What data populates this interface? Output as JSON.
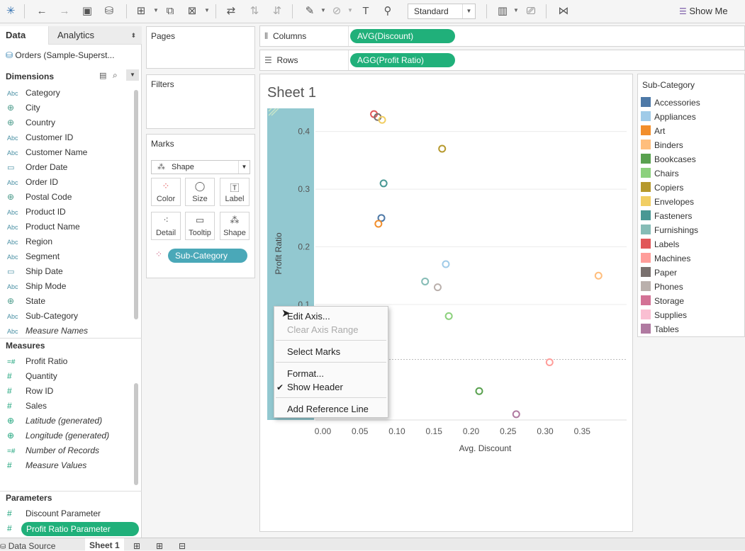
{
  "toolbar": {
    "fit_value": "Standard",
    "show_me_label": "Show Me"
  },
  "data_pane": {
    "tab_data": "Data",
    "tab_analytics": "Analytics",
    "datasource": "Orders (Sample-Superst...",
    "dimensions_title": "Dimensions",
    "dimensions": [
      {
        "icon": "Abc",
        "label": "Category"
      },
      {
        "icon": "geo",
        "label": "City"
      },
      {
        "icon": "geo",
        "label": "Country"
      },
      {
        "icon": "Abc",
        "label": "Customer ID"
      },
      {
        "icon": "Abc",
        "label": "Customer Name"
      },
      {
        "icon": "cal",
        "label": "Order Date"
      },
      {
        "icon": "Abc",
        "label": "Order ID"
      },
      {
        "icon": "geo",
        "label": "Postal Code"
      },
      {
        "icon": "Abc",
        "label": "Product ID"
      },
      {
        "icon": "Abc",
        "label": "Product Name"
      },
      {
        "icon": "Abc",
        "label": "Region"
      },
      {
        "icon": "Abc",
        "label": "Segment"
      },
      {
        "icon": "cal",
        "label": "Ship Date"
      },
      {
        "icon": "Abc",
        "label": "Ship Mode"
      },
      {
        "icon": "geo",
        "label": "State"
      },
      {
        "icon": "Abc",
        "label": "Sub-Category"
      },
      {
        "icon": "Abc",
        "label": "Measure Names"
      }
    ],
    "measures_title": "Measures",
    "measures": [
      {
        "icon": "=#",
        "label": "Profit Ratio"
      },
      {
        "icon": "#",
        "label": "Quantity"
      },
      {
        "icon": "#",
        "label": "Row ID"
      },
      {
        "icon": "#",
        "label": "Sales"
      },
      {
        "icon": "geo",
        "label": "Latitude (generated)"
      },
      {
        "icon": "geo",
        "label": "Longitude (generated)"
      },
      {
        "icon": "=#",
        "label": "Number of Records"
      },
      {
        "icon": "#",
        "label": "Measure Values"
      }
    ],
    "parameters_title": "Parameters",
    "parameters": [
      {
        "label": "Discount Parameter"
      },
      {
        "label": "Profit Ratio Parameter"
      }
    ]
  },
  "cards": {
    "pages": "Pages",
    "filters": "Filters",
    "marks": "Marks",
    "mark_type": "Shape",
    "mark_buttons": [
      "Color",
      "Size",
      "Label",
      "Detail",
      "Tooltip",
      "Shape"
    ],
    "subcat_pill": "Sub-Category"
  },
  "shelves": {
    "columns_label": "Columns",
    "columns_pill": "AVG(Discount)",
    "rows_label": "Rows",
    "rows_pill": "AGG(Profit Ratio)"
  },
  "view": {
    "sheet_title": "Sheet 1"
  },
  "legend": {
    "title": "Sub-Category",
    "items": [
      {
        "label": "Accessories",
        "color": "#4e79a7"
      },
      {
        "label": "Appliances",
        "color": "#a0cbe8"
      },
      {
        "label": "Art",
        "color": "#f28e2b"
      },
      {
        "label": "Binders",
        "color": "#ffbe7d"
      },
      {
        "label": "Bookcases",
        "color": "#59a14f"
      },
      {
        "label": "Chairs",
        "color": "#8cd17d"
      },
      {
        "label": "Copiers",
        "color": "#b6992d"
      },
      {
        "label": "Envelopes",
        "color": "#f1ce63"
      },
      {
        "label": "Fasteners",
        "color": "#499894"
      },
      {
        "label": "Furnishings",
        "color": "#86bcb6"
      },
      {
        "label": "Labels",
        "color": "#e15759"
      },
      {
        "label": "Machines",
        "color": "#ff9d9a"
      },
      {
        "label": "Paper",
        "color": "#79706e"
      },
      {
        "label": "Phones",
        "color": "#bab0ac"
      },
      {
        "label": "Storage",
        "color": "#d37295"
      },
      {
        "label": "Supplies",
        "color": "#fabfd2"
      },
      {
        "label": "Tables",
        "color": "#b07aa1"
      }
    ]
  },
  "chart_data": {
    "type": "scatter",
    "xlabel": "Avg. Discount",
    "ylabel": "Profit Ratio",
    "x_ticks": [
      "0.00",
      "0.05",
      "0.10",
      "0.15",
      "0.20",
      "0.25",
      "0.30",
      "0.35"
    ],
    "y_ticks": [
      "0.4",
      "0.3",
      "0.2",
      "0.1"
    ],
    "xlim": [
      -0.01,
      0.41
    ],
    "ylim": [
      -0.1,
      0.44
    ],
    "points": [
      {
        "name": "Labels",
        "x": 0.069,
        "y": 0.43,
        "color": "#e15759"
      },
      {
        "name": "Paper",
        "x": 0.074,
        "y": 0.425,
        "color": "#79706e"
      },
      {
        "name": "Envelopes",
        "x": 0.08,
        "y": 0.42,
        "color": "#f1ce63"
      },
      {
        "name": "Copiers",
        "x": 0.161,
        "y": 0.37,
        "color": "#b6992d"
      },
      {
        "name": "Fasteners",
        "x": 0.082,
        "y": 0.31,
        "color": "#499894"
      },
      {
        "name": "Accessories",
        "x": 0.079,
        "y": 0.25,
        "color": "#4e79a7"
      },
      {
        "name": "Art",
        "x": 0.075,
        "y": 0.24,
        "color": "#f28e2b"
      },
      {
        "name": "Appliances",
        "x": 0.166,
        "y": 0.17,
        "color": "#a0cbe8"
      },
      {
        "name": "Binders",
        "x": 0.372,
        "y": 0.15,
        "color": "#ffbe7d"
      },
      {
        "name": "Furnishings",
        "x": 0.138,
        "y": 0.14,
        "color": "#86bcb6"
      },
      {
        "name": "Phones",
        "x": 0.155,
        "y": 0.13,
        "color": "#bab0ac"
      },
      {
        "name": "Chairs",
        "x": 0.17,
        "y": 0.08,
        "color": "#8cd17d"
      },
      {
        "name": "Storage",
        "x": 0.074,
        "y": 0.09,
        "color": "#d37295"
      },
      {
        "name": "Machines",
        "x": 0.306,
        "y": 0.0,
        "color": "#ff9d9a"
      },
      {
        "name": "Bookcases",
        "x": 0.211,
        "y": -0.05,
        "color": "#59a14f"
      },
      {
        "name": "Tables",
        "x": 0.261,
        "y": -0.09,
        "color": "#b07aa1"
      },
      {
        "name": "Supplies",
        "x": 0.076,
        "y": -0.05,
        "color": "#fabfd2"
      }
    ]
  },
  "context_menu": {
    "items": [
      "Edit Axis...",
      "Clear Axis Range",
      "Select Marks",
      "Format...",
      "Show Header",
      "Add Reference Line"
    ]
  },
  "bottom_tabs": {
    "data_source": "Data Source",
    "sheet": "Sheet 1"
  }
}
